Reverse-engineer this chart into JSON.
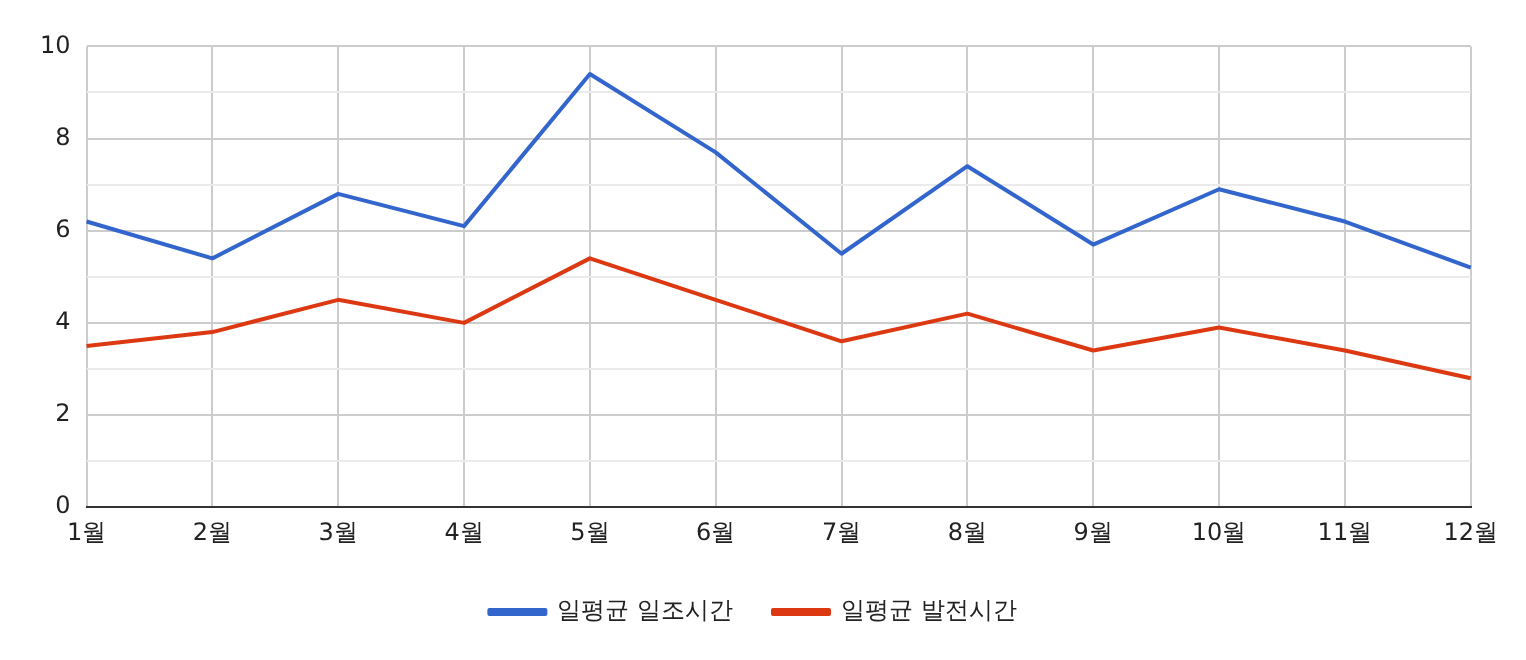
{
  "chart_data": {
    "type": "line",
    "categories": [
      "1월",
      "2월",
      "3월",
      "4월",
      "5월",
      "6월",
      "7월",
      "8월",
      "9월",
      "10월",
      "11월",
      "12월"
    ],
    "series": [
      {
        "name": "일평균 일조시간",
        "color": "#3366cc",
        "values": [
          6.2,
          5.4,
          6.8,
          6.1,
          9.4,
          7.7,
          5.5,
          7.4,
          5.7,
          6.9,
          6.2,
          5.2
        ]
      },
      {
        "name": "일평균 발전시간",
        "color": "#dc3912",
        "values": [
          3.5,
          3.8,
          4.5,
          4.0,
          5.4,
          4.5,
          3.6,
          4.2,
          3.4,
          3.9,
          3.4,
          2.8
        ]
      }
    ],
    "ylim": [
      0,
      10
    ],
    "yticks": [
      0,
      {
        "value": 1,
        "label": null
      },
      2,
      {
        "value": 3,
        "label": null
      },
      4,
      {
        "value": 5,
        "label": null
      },
      6,
      {
        "value": 7,
        "label": null
      },
      8,
      {
        "value": 9,
        "label": null
      },
      10
    ],
    "grid": true,
    "legend": "bottom",
    "marker": "none",
    "line_style": "solid"
  }
}
